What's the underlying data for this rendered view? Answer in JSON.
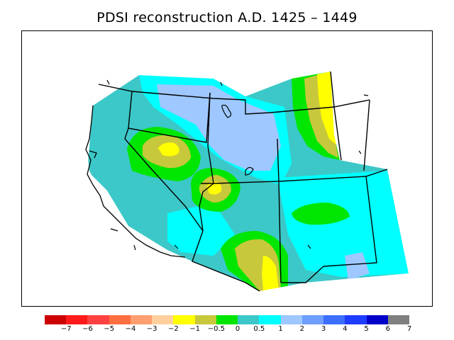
{
  "title": "PDSI reconstruction A.D. 1425 – 1449",
  "legend": {
    "colors": [
      "#cc0000",
      "#ff1a1a",
      "#ff4040",
      "#ff6e40",
      "#ff9e6e",
      "#ffd09e",
      "#ffff00",
      "#c8c83c",
      "#00e600",
      "#3cc8c8",
      "#00ffff",
      "#9ec8ff",
      "#6e9eff",
      "#3c6eff",
      "#1e3cff",
      "#0000c8",
      "#808080"
    ],
    "labels": [
      "−7",
      "−6",
      "−5",
      "−4",
      "−3",
      "−2",
      "−1",
      "−0.5",
      "0",
      "0.5",
      "1",
      "2",
      "3",
      "4",
      "5",
      "6",
      "7"
    ]
  }
}
